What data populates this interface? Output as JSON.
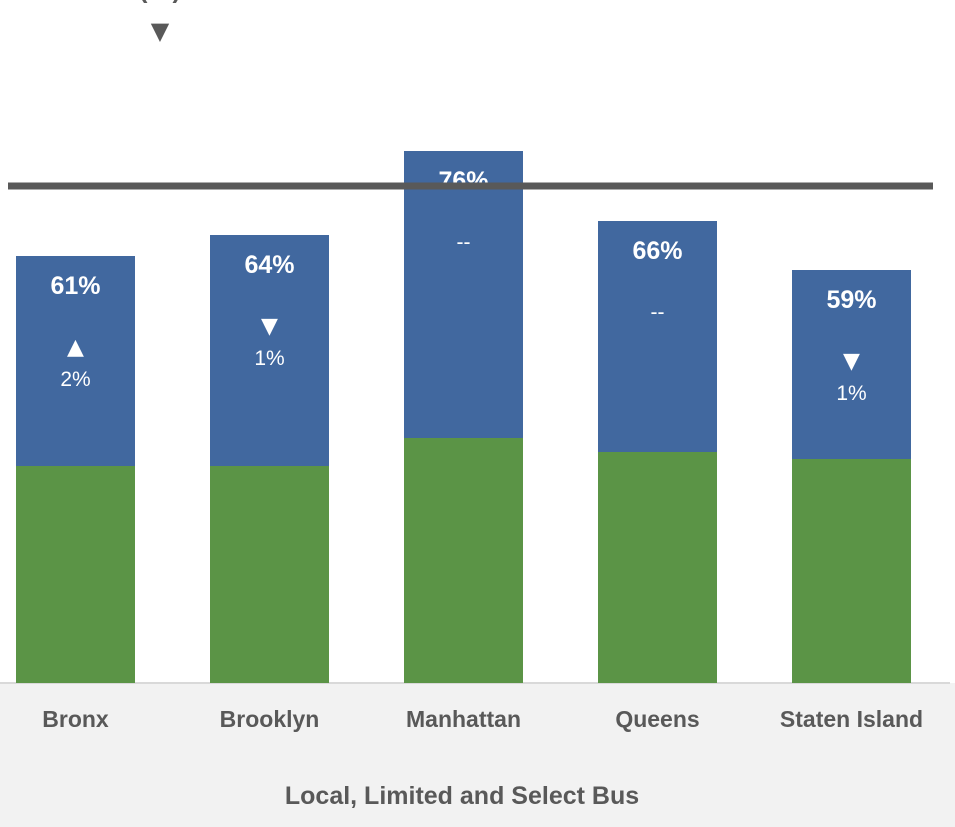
{
  "chart_data": {
    "type": "bar",
    "stacked": true,
    "categories": [
      "Bronx",
      "Brooklyn",
      "Manhattan",
      "Queens",
      "Staten Island"
    ],
    "series": [
      {
        "values": [
          31,
          31,
          35,
          33,
          32
        ],
        "color": "#5B9446"
      },
      {
        "values": [
          30,
          33,
          41,
          33,
          27
        ],
        "color": "#41689F"
      }
    ],
    "totals": [
      61,
      64,
      76,
      66,
      59
    ],
    "total_labels": [
      "61%",
      "64%",
      "76%",
      "66%",
      "59%"
    ],
    "changes": [
      {
        "direction": "up",
        "arrow": "▲",
        "text": "2%"
      },
      {
        "direction": "down",
        "arrow": "▼",
        "text": "1%"
      },
      {
        "direction": "none",
        "arrow": "",
        "text": "--"
      },
      {
        "direction": "none",
        "arrow": "",
        "text": "--"
      },
      {
        "direction": "down",
        "arrow": "▼",
        "text": "1%"
      }
    ],
    "reference_line": {
      "value": 71,
      "color": "#595959"
    },
    "top_fragment": {
      "text": "(…)",
      "arrow": "▼"
    },
    "xlabel": "Local, Limited and Select Bus",
    "ylim": [
      0,
      100
    ],
    "grid": false,
    "legend": "none",
    "colors": {
      "axis_band": "#F2F2F2",
      "label": "#595959"
    }
  }
}
